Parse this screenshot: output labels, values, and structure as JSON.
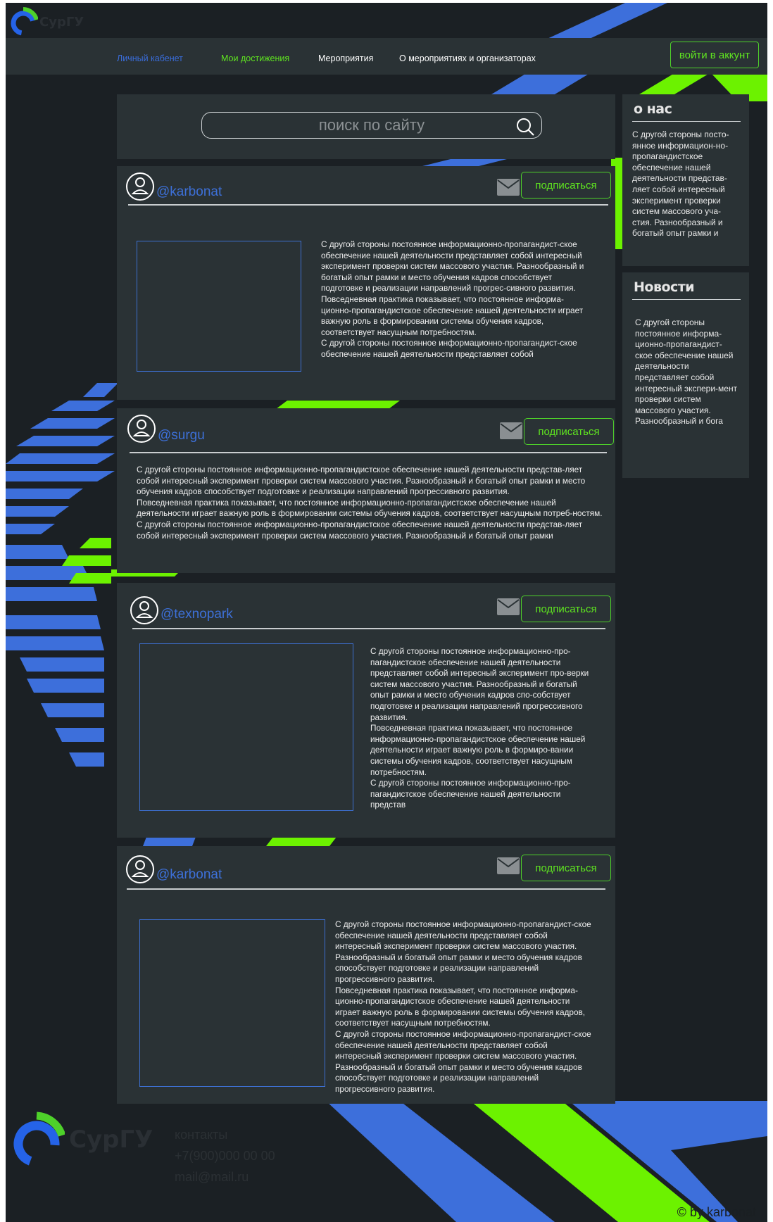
{
  "colors": {
    "background": "#1b2024",
    "panel": "#2a3235",
    "accent_blue": "#3d6fdb",
    "accent_green": "#6cf200",
    "text": "#eeeeee"
  },
  "logo": {
    "text": "СурГУ"
  },
  "nav": {
    "items": [
      {
        "label": "Личный кабенет"
      },
      {
        "label": "Мои достижения"
      },
      {
        "label": "Мероприятия"
      },
      {
        "label": "О мероприятиях и организаторах"
      }
    ],
    "login_label": "войти в аккунт"
  },
  "search": {
    "placeholder": "поиск по сайту",
    "icon": "search-icon"
  },
  "sidebar": {
    "about": {
      "title": "о нас",
      "text": "С другой стороны посто-янное информацион-но-пропагандистское обеспечение нашей деятельности представ-ляет собой интересный эксперимент проверки систем массового уча-стия. Разнообразный и богатый опыт рамки и"
    },
    "news": {
      "title": "Новости",
      "text": "С другой стороны постоянное информа-ционно-пропагандист-ское обеспечение нашей деятельности представляет собой интересный экспери-мент проверки систем массового участия. Разнообразный и бога"
    }
  },
  "posts": [
    {
      "username": "@karbonat",
      "subscribe_label": "подписаться",
      "text": "С другой стороны постоянное информационно-пропагандист-ское обеспечение нашей деятельности представляет собой интересный эксперимент проверки систем массового участия. Разнообразный и богатый опыт рамки и место обучения кадров способствует подготовке и реализации направлений прогрес-сивного развития.\nПовседневная практика показывает, что постоянное информа-ционно-пропагандистское обеспечение нашей деятельности играет важную роль в формировании системы обучения кадров, соответствует насущным потребностям.\nС другой стороны постоянное информационно-пропагандист-ское обеспечение нашей деятельности представляет собой"
    },
    {
      "username": "@surgu",
      "subscribe_label": "подписаться",
      "text": "С другой стороны постоянное информационно-пропагандистское обеспечение нашей деятельности представ-ляет собой интересный эксперимент проверки систем массового участия. Разнообразный и богатый опыт рамки и место обучения кадров способствует подготовке и реализации направлений прогрессивного развития.\nПовседневная практика показывает, что постоянное информационно-пропагандистское обеспечение нашей деятельности играет важную роль в формировании системы обучения кадров, соответствует насущным потреб-ностям.\nС другой стороны постоянное информационно-пропагандистское обеспечение нашей деятельности представ-ляет собой интересный эксперимент проверки систем массового участия. Разнообразный и богатый опыт рамки"
    },
    {
      "username": "@texnopark",
      "subscribe_label": "подписаться",
      "text": "С другой стороны постоянное информационно-про-пагандистское обеспечение нашей деятельности представляет собой интересный эксперимент про-верки систем массового участия. Разнообразный и богатый опыт рамки и место обучения кадров спо-собствует подготовке и реализации направлений прогрессивного развития.\nПовседневная практика показывает, что постоянное информационно-пропагандистское обеспечение нашей деятельности играет важную роль в формиро-вании системы обучения кадров, соответствует насущным потребностям.\nС другой стороны постоянное информационно-про-пагандистское обеспечение нашей деятельности представ"
    },
    {
      "username": "@karbonat",
      "subscribe_label": "подписаться",
      "text": "С другой стороны постоянное информационно-пропагандист-ское обеспечение нашей деятельности представляет собой интересный эксперимент проверки систем массового участия. Разнообразный и богатый опыт рамки и место обучения кадров способствует подготовке и реализации направлений прогрессивного развития.\nПовседневная практика показывает, что постоянное информа-ционно-пропагандистское обеспечение нашей деятельности играет важную роль в формировании системы обучения кадров, соответствует насущным потребностям.\nС другой стороны постоянное информационно-пропагандист-ское обеспечение нашей деятельности представляет собой интересный эксперимент проверки систем массового участия. Разнообразный и богатый опыт рамки и место обучения кадров способствует подготовке и реализации направлений прогрессивного развития."
    }
  ],
  "footer": {
    "logo_text": "СурГУ",
    "contacts_label": "контакты",
    "phone": "+7(900)000 00 00",
    "email": "mail@mail.ru",
    "copyright": "© by karbonat"
  }
}
